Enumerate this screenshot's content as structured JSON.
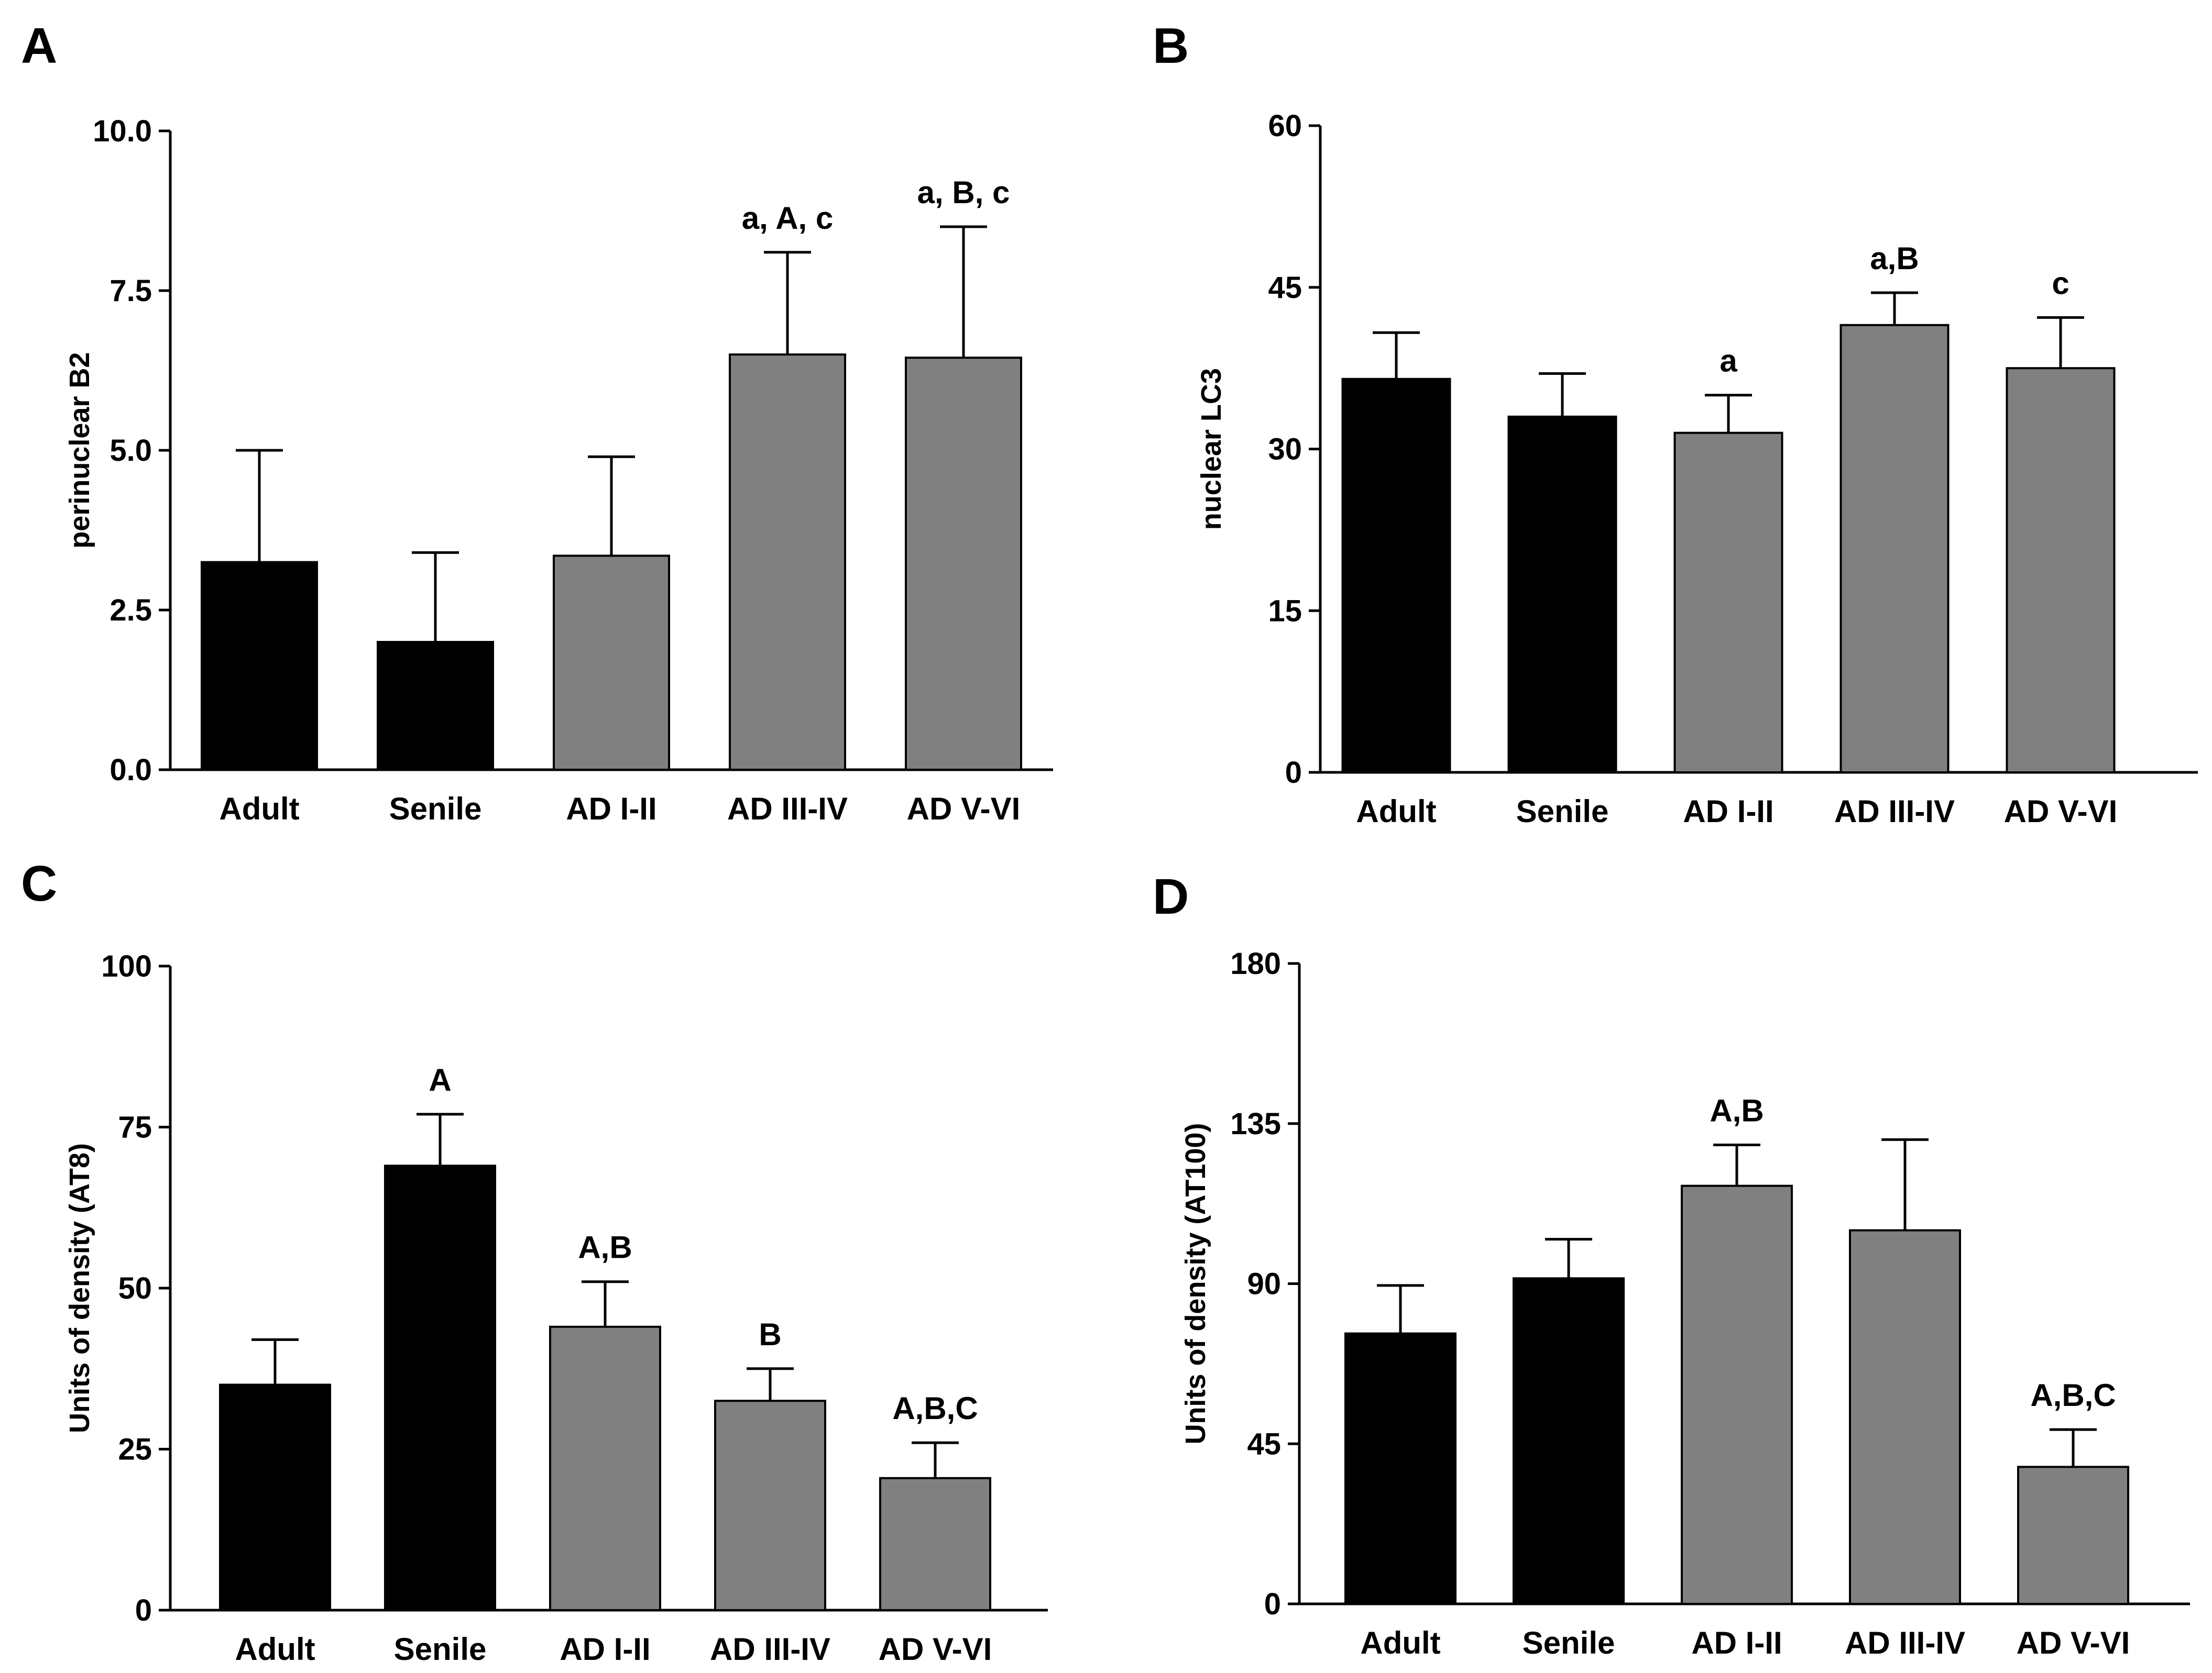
{
  "colors": {
    "control": "#000000",
    "ad": "#808080",
    "axis": "#000000"
  },
  "chart_data": [
    {
      "panel": "A",
      "type": "bar",
      "ylabel": "perinuclear B2",
      "xlabel": "",
      "ylim": [
        0,
        10
      ],
      "yticks": [
        "0.0",
        "2.5",
        "5.0",
        "7.5",
        "10.0"
      ],
      "categories": [
        "Adult",
        "Senile",
        "AD I-II",
        "AD III-IV",
        "AD V-VI"
      ],
      "values": [
        3.25,
        2.0,
        3.35,
        6.5,
        6.45
      ],
      "errors": [
        1.75,
        1.4,
        1.55,
        1.6,
        2.05
      ],
      "groups": [
        "control",
        "control",
        "ad",
        "ad",
        "ad"
      ],
      "annotations": [
        "",
        "",
        "",
        "a, A, c",
        "a, B, c"
      ]
    },
    {
      "panel": "B",
      "type": "bar",
      "ylabel": "nuclear LC3",
      "xlabel": "",
      "ylim": [
        0,
        60
      ],
      "yticks": [
        "0",
        "15",
        "30",
        "45",
        "60"
      ],
      "categories": [
        "Adult",
        "Senile",
        "AD I-II",
        "AD III-IV",
        "AD V-VI"
      ],
      "values": [
        36.5,
        33.0,
        31.5,
        41.5,
        37.5
      ],
      "errors": [
        4.3,
        4.0,
        3.5,
        3.0,
        4.7
      ],
      "groups": [
        "control",
        "control",
        "ad",
        "ad",
        "ad"
      ],
      "annotations": [
        "",
        "",
        "a",
        "a,B",
        "c"
      ]
    },
    {
      "panel": "C",
      "type": "bar",
      "ylabel": "Units of density (AT8)",
      "xlabel": "",
      "ylim": [
        0,
        100
      ],
      "yticks": [
        "0",
        "25",
        "50",
        "75",
        "100"
      ],
      "categories": [
        "Adult",
        "Senile",
        "AD I-II",
        "AD III-IV",
        "AD V-VI"
      ],
      "values": [
        35,
        69,
        44,
        32.5,
        20.5
      ],
      "errors": [
        7,
        8,
        7,
        5,
        5.5
      ],
      "groups": [
        "control",
        "control",
        "ad",
        "ad",
        "ad"
      ],
      "annotations": [
        "",
        "A",
        "A,B",
        "B",
        "A,B,C"
      ]
    },
    {
      "panel": "D",
      "type": "bar",
      "ylabel": "Units of density (AT100)",
      "xlabel": "",
      "ylim": [
        0,
        180
      ],
      "yticks": [
        "0",
        "45",
        "90",
        "135",
        "180"
      ],
      "categories": [
        "Adult",
        "Senile",
        "AD I-II",
        "AD III-IV",
        "AD V-VI"
      ],
      "values": [
        76,
        91.5,
        117.5,
        105,
        38.5
      ],
      "errors": [
        13.5,
        11,
        11.5,
        25.5,
        10.5
      ],
      "groups": [
        "control",
        "control",
        "ad",
        "ad",
        "ad"
      ],
      "annotations": [
        "",
        "",
        "A,B",
        "",
        "A,B,C"
      ]
    }
  ]
}
